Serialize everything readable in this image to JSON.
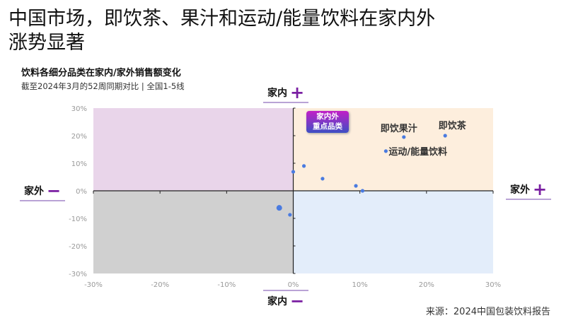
{
  "title_line1": "中国市场，即饮茶、果汁和运动/能量饮料在家内外",
  "title_line2": "涨势显著",
  "chart_data": {
    "type": "scatter",
    "title": "饮料各细分品类在家内/家外销售额变化",
    "subtitle": "截至2024年3月的52周同期对比 | 全国1-5线",
    "xlim": [
      -30,
      30
    ],
    "ylim": [
      -30,
      30
    ],
    "xticks": [
      "-30%",
      "-20%",
      "-10%",
      "0%",
      "10%",
      "20%",
      "30%"
    ],
    "yticks": [
      "30%",
      "20%",
      "10%",
      "0%",
      "-10%",
      "-20%",
      "-30%"
    ],
    "x_tick_values": [
      -30,
      -20,
      -10,
      0,
      10,
      20,
      30
    ],
    "y_tick_values": [
      30,
      20,
      10,
      0,
      -10,
      -20,
      -30
    ],
    "quadrant_colors": {
      "top_left": "#e9d5ea",
      "top_right": "#fdeedd",
      "bottom_left": "#d0d0d0",
      "bottom_right": "#e3edfa"
    },
    "point_color": "#4a7be0",
    "points": [
      {
        "x": 22.8,
        "y": 20.0,
        "label": "即饮茶"
      },
      {
        "x": 16.6,
        "y": 19.5,
        "label": "即饮果汁"
      },
      {
        "x": 13.9,
        "y": 14.4,
        "label": "运动/能量饮料"
      },
      {
        "x": 1.6,
        "y": 9.0
      },
      {
        "x": 0.0,
        "y": 6.9
      },
      {
        "x": 4.4,
        "y": 4.4
      },
      {
        "x": 9.4,
        "y": 1.8
      },
      {
        "x": 10.4,
        "y": 0.0
      },
      {
        "x": -2.1,
        "y": -6.2,
        "large": true
      },
      {
        "x": -0.5,
        "y": -8.7
      }
    ],
    "badge_line1": "家内外",
    "badge_line2": "重点品类",
    "axis_labels": {
      "top": "家内",
      "top_sign": "+",
      "bottom": "家内",
      "bottom_sign": "−",
      "left": "家外",
      "left_sign": "−",
      "right": "家外",
      "right_sign": "+"
    }
  },
  "source": "来源：2024中国包装饮料报告"
}
